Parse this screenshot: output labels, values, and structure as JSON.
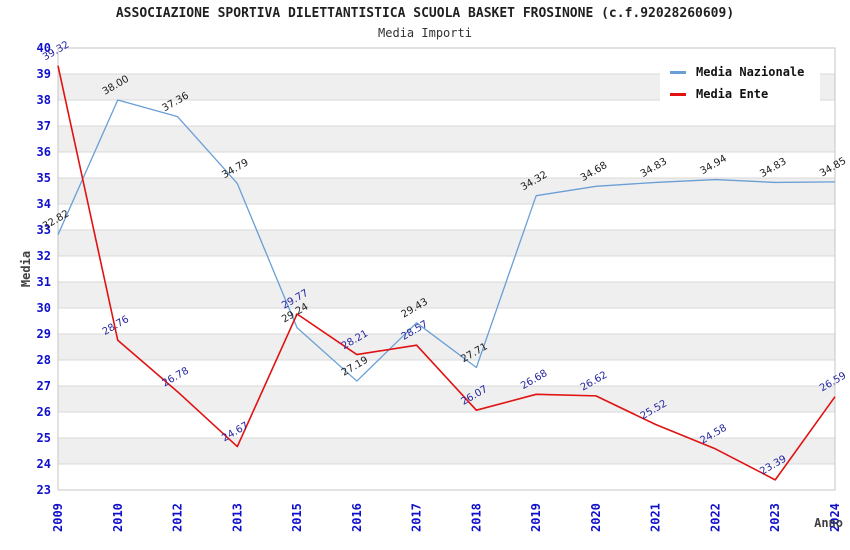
{
  "chart_data": {
    "type": "line",
    "title": "ASSOCIAZIONE SPORTIVA DILETTANTISTICA SCUOLA BASKET FROSINONE (c.f.92028260609)",
    "subtitle": "Media Importi",
    "xlabel": "Anno",
    "ylabel": "Media",
    "ylim": [
      23,
      40
    ],
    "yticks": [
      23,
      24,
      25,
      26,
      27,
      28,
      29,
      30,
      31,
      32,
      33,
      34,
      35,
      36,
      37,
      38,
      39,
      40
    ],
    "categories": [
      "2009",
      "2010",
      "2012",
      "2013",
      "2015",
      "2016",
      "2017",
      "2018",
      "2019",
      "2020",
      "2021",
      "2022",
      "2023",
      "2024"
    ],
    "series": [
      {
        "name": "Media Nazionale",
        "color": "#6a9fd5",
        "label_color": "#1c1c1c",
        "values": [
          32.82,
          38.0,
          37.36,
          34.79,
          29.24,
          27.19,
          29.43,
          27.71,
          34.32,
          34.68,
          34.83,
          34.94,
          34.83,
          34.85
        ],
        "labels": [
          "32.82",
          "38.00",
          "37.36",
          "34.79",
          "29.24",
          "27.19",
          "29.43",
          "27.71",
          "34.32",
          "34.68",
          "34.83",
          "34.94",
          "34.83",
          "34.85"
        ]
      },
      {
        "name": "Media Ente",
        "color": "#e01212",
        "label_color": "#2626a0",
        "values": [
          39.32,
          28.76,
          26.78,
          24.67,
          29.77,
          28.21,
          28.57,
          26.07,
          26.68,
          26.62,
          25.52,
          24.58,
          23.39,
          26.59
        ],
        "labels": [
          "39.32",
          "28.76",
          "26.78",
          "24.67",
          "29.77",
          "28.21",
          "28.57",
          "26.07",
          "26.68",
          "26.62",
          "25.52",
          "24.58",
          "23.39",
          "26.59"
        ]
      }
    ],
    "grid": {
      "stripe_color": "#efefef",
      "line_color": "#d9d9d9",
      "border_color": "#c6c6c6",
      "grid_on": true
    },
    "tick_color": "#1010cc",
    "axis_label_color": "#404040",
    "legend_position": "top-right"
  }
}
